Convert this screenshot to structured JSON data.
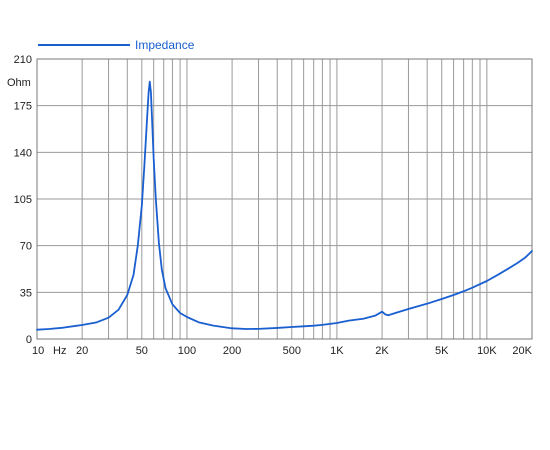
{
  "chart_data": {
    "type": "line",
    "title": "",
    "xlabel": "Hz",
    "ylabel": "Ohm",
    "x_scale": "log",
    "xlim": [
      10,
      20000
    ],
    "ylim": [
      0,
      210
    ],
    "grid": true,
    "legend": {
      "position": "top-left",
      "entries": [
        "Impedance"
      ]
    },
    "x_ticks": [
      {
        "value": 10,
        "label": "10"
      },
      {
        "value": 20,
        "label": "20"
      },
      {
        "value": 30,
        "label": ""
      },
      {
        "value": 40,
        "label": ""
      },
      {
        "value": 50,
        "label": "50"
      },
      {
        "value": 60,
        "label": ""
      },
      {
        "value": 70,
        "label": ""
      },
      {
        "value": 80,
        "label": ""
      },
      {
        "value": 90,
        "label": ""
      },
      {
        "value": 100,
        "label": "100"
      },
      {
        "value": 200,
        "label": "200"
      },
      {
        "value": 300,
        "label": ""
      },
      {
        "value": 400,
        "label": ""
      },
      {
        "value": 500,
        "label": "500"
      },
      {
        "value": 600,
        "label": ""
      },
      {
        "value": 700,
        "label": ""
      },
      {
        "value": 800,
        "label": ""
      },
      {
        "value": 900,
        "label": ""
      },
      {
        "value": 1000,
        "label": "1K"
      },
      {
        "value": 2000,
        "label": "2K"
      },
      {
        "value": 3000,
        "label": ""
      },
      {
        "value": 4000,
        "label": ""
      },
      {
        "value": 5000,
        "label": "5K"
      },
      {
        "value": 6000,
        "label": ""
      },
      {
        "value": 7000,
        "label": ""
      },
      {
        "value": 8000,
        "label": ""
      },
      {
        "value": 9000,
        "label": ""
      },
      {
        "value": 10000,
        "label": "10K"
      },
      {
        "value": 20000,
        "label": "20K"
      }
    ],
    "y_ticks": [
      0,
      35,
      70,
      105,
      140,
      175,
      210
    ],
    "series": [
      {
        "name": "Impedance",
        "color": "#1a5fd0",
        "points": [
          [
            10,
            7.0
          ],
          [
            12,
            7.5
          ],
          [
            15,
            8.5
          ],
          [
            18,
            9.8
          ],
          [
            20,
            10.5
          ],
          [
            25,
            12.5
          ],
          [
            30,
            16.0
          ],
          [
            35,
            22.0
          ],
          [
            40,
            33.0
          ],
          [
            44,
            48.0
          ],
          [
            47,
            70.0
          ],
          [
            50,
            100.0
          ],
          [
            52,
            130.0
          ],
          [
            54,
            162.0
          ],
          [
            55.5,
            185.0
          ],
          [
            56.5,
            193.0
          ],
          [
            57.5,
            185.0
          ],
          [
            58.5,
            165.0
          ],
          [
            60,
            135.0
          ],
          [
            62,
            105.0
          ],
          [
            65,
            72.0
          ],
          [
            68,
            52.0
          ],
          [
            72,
            38.0
          ],
          [
            80,
            26.0
          ],
          [
            90,
            19.5
          ],
          [
            100,
            16.5
          ],
          [
            120,
            12.5
          ],
          [
            150,
            10.0
          ],
          [
            200,
            8.0
          ],
          [
            250,
            7.5
          ],
          [
            300,
            7.6
          ],
          [
            400,
            8.3
          ],
          [
            500,
            9.0
          ],
          [
            600,
            9.5
          ],
          [
            700,
            10.0
          ],
          [
            800,
            10.6
          ],
          [
            1000,
            12.0
          ],
          [
            1200,
            13.8
          ],
          [
            1500,
            15.2
          ],
          [
            1800,
            17.5
          ],
          [
            2000,
            20.5
          ],
          [
            2100,
            18.5
          ],
          [
            2200,
            17.8
          ],
          [
            2500,
            19.8
          ],
          [
            3000,
            22.5
          ],
          [
            4000,
            26.5
          ],
          [
            5000,
            30.0
          ],
          [
            6000,
            33.0
          ],
          [
            7000,
            35.8
          ],
          [
            8000,
            38.5
          ],
          [
            10000,
            43.5
          ],
          [
            12000,
            48.5
          ],
          [
            14000,
            53.0
          ],
          [
            16000,
            57.0
          ],
          [
            18000,
            61.0
          ],
          [
            20000,
            66.0
          ]
        ]
      }
    ]
  }
}
